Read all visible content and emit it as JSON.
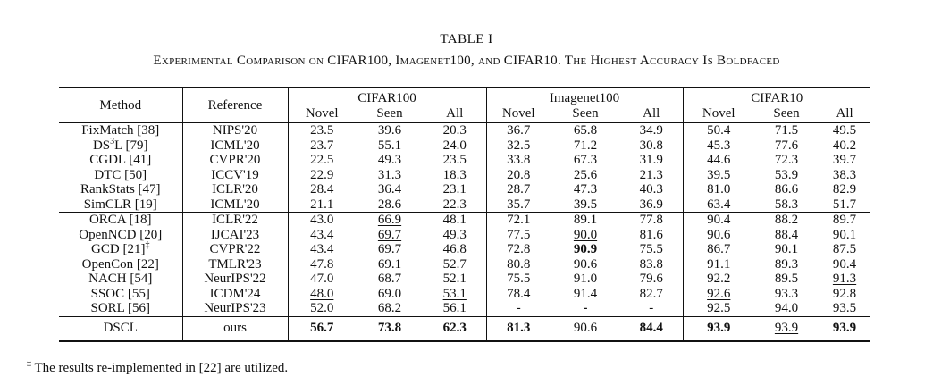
{
  "table_number": "TABLE I",
  "caption": "Experimental Comparison on CIFAR100, Imagenet100, and CIFAR10. The Highest Accuracy Is Boldfaced",
  "headers": {
    "method": "Method",
    "reference": "Reference",
    "groups": [
      "CIFAR100",
      "Imagenet100",
      "CIFAR10"
    ],
    "sub": [
      "Novel",
      "Seen",
      "All"
    ]
  },
  "rows_group1": [
    {
      "method": "FixMatch [38]",
      "method_sup": "",
      "method_tail": "",
      "reference": "NIPS'20",
      "values": [
        "23.5",
        "39.6",
        "20.3",
        "36.7",
        "65.8",
        "34.9",
        "50.4",
        "71.5",
        "49.5"
      ]
    },
    {
      "method": "DS",
      "method_sup": "3",
      "method_tail": "L [79]",
      "reference": "ICML'20",
      "values": [
        "23.7",
        "55.1",
        "24.0",
        "32.5",
        "71.2",
        "30.8",
        "45.3",
        "77.6",
        "40.2"
      ]
    },
    {
      "method": "CGDL [41]",
      "method_sup": "",
      "method_tail": "",
      "reference": "CVPR'20",
      "values": [
        "22.5",
        "49.3",
        "23.5",
        "33.8",
        "67.3",
        "31.9",
        "44.6",
        "72.3",
        "39.7"
      ]
    },
    {
      "method": "DTC [50]",
      "method_sup": "",
      "method_tail": "",
      "reference": "ICCV'19",
      "values": [
        "22.9",
        "31.3",
        "18.3",
        "20.8",
        "25.6",
        "21.3",
        "39.5",
        "53.9",
        "38.3"
      ]
    },
    {
      "method": "RankStats [47]",
      "method_sup": "",
      "method_tail": "",
      "reference": "ICLR'20",
      "values": [
        "28.4",
        "36.4",
        "23.1",
        "28.7",
        "47.3",
        "40.3",
        "81.0",
        "86.6",
        "82.9"
      ]
    },
    {
      "method": "SimCLR [19]",
      "method_sup": "",
      "method_tail": "",
      "reference": "ICML'20",
      "values": [
        "21.1",
        "28.6",
        "22.3",
        "35.7",
        "39.5",
        "36.9",
        "63.4",
        "58.3",
        "51.7"
      ]
    }
  ],
  "rows_group2": [
    {
      "method": "ORCA [18]",
      "method_sup": "",
      "method_tail": "",
      "reference": "ICLR'22",
      "values": [
        "43.0",
        "66.9",
        "48.1",
        "72.1",
        "89.1",
        "77.8",
        "90.4",
        "88.2",
        "89.7"
      ]
    },
    {
      "method": "OpenNCD [20]",
      "method_sup": "",
      "method_tail": "",
      "reference": "IJCAI'23",
      "values": [
        "43.4",
        "69.7",
        "49.3",
        "77.5",
        "90.0",
        "81.6",
        "90.6",
        "88.4",
        "90.1"
      ]
    },
    {
      "method": "GCD [21]",
      "method_sup": "‡",
      "method_tail": "",
      "reference": "CVPR'22",
      "values": [
        "43.4",
        "69.7",
        "46.8",
        "72.8",
        "90.9",
        "75.5",
        "86.7",
        "90.1",
        "87.5"
      ]
    },
    {
      "method": "OpenCon [22]",
      "method_sup": "",
      "method_tail": "",
      "reference": "TMLR'23",
      "values": [
        "47.8",
        "69.1",
        "52.7",
        "80.8",
        "90.6",
        "83.8",
        "91.1",
        "89.3",
        "90.4"
      ]
    },
    {
      "method": "NACH [54]",
      "method_sup": "",
      "method_tail": "",
      "reference": "NeurIPS'22",
      "values": [
        "47.0",
        "68.7",
        "52.1",
        "75.5",
        "91.0",
        "79.6",
        "92.2",
        "89.5",
        "91.3"
      ]
    },
    {
      "method": "SSOC [55]",
      "method_sup": "",
      "method_tail": "",
      "reference": "ICDM'24",
      "values": [
        "48.0",
        "69.0",
        "53.1",
        "78.4",
        "91.4",
        "82.7",
        "92.6",
        "93.3",
        "92.8"
      ]
    },
    {
      "method": "SORL [56]",
      "method_sup": "",
      "method_tail": "",
      "reference": "NeurIPS'23",
      "values": [
        "52.0",
        "68.2",
        "56.1",
        "-",
        "-",
        "-",
        "92.5",
        "94.0",
        "93.5"
      ]
    }
  ],
  "row_dscl": {
    "method": "DSCL",
    "reference": "ours",
    "values": [
      "56.7",
      "73.8",
      "62.3",
      "81.3",
      "90.6",
      "84.4",
      "93.9",
      "93.9",
      "93.9"
    ]
  },
  "bold_cells": [
    "9-4",
    "13-4",
    "14-7",
    "0-0",
    "0-1",
    "0-2",
    "0-3",
    "0-5",
    "0-6",
    "0-8"
  ],
  "underline_cells": [
    "7-1",
    "8-1",
    "8-4",
    "9-3",
    "9-5",
    "12-6",
    "12-0",
    "12-2",
    "11-8",
    "0-7"
  ],
  "footnote_mark": "‡",
  "footnote_text": "The results re-implemented in [22] are utilized."
}
